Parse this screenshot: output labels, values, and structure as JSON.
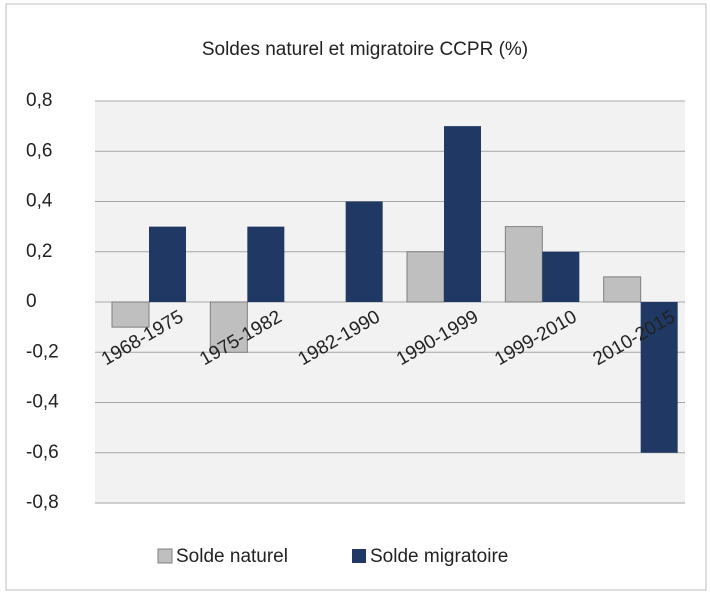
{
  "chart_data": {
    "type": "bar",
    "title": "Soldes naturel et  migratoire CCPR (%)",
    "categories": [
      "1968-1975",
      "1975-1982",
      "1982-1990",
      "1990-1999",
      "1999-2010",
      "2010-2015"
    ],
    "series": [
      {
        "name": "Solde naturel",
        "color": "#bfbfbf",
        "values": [
          -0.1,
          -0.2,
          0,
          0.2,
          0.3,
          0.1
        ]
      },
      {
        "name": "Solde migratoire",
        "color": "#1f3864",
        "values": [
          0.3,
          0.3,
          0.4,
          0.7,
          0.2,
          -0.6
        ]
      }
    ],
    "ylim": [
      -0.8,
      0.8
    ],
    "yticks": [
      {
        "value": -0.8,
        "label": "-0,8"
      },
      {
        "value": -0.6,
        "label": "-0,6"
      },
      {
        "value": -0.4,
        "label": "-0,4"
      },
      {
        "value": -0.2,
        "label": "-0,2"
      },
      0,
      {
        "value": 0.2,
        "label": "0,2"
      },
      {
        "value": 0.4,
        "label": "0,4"
      },
      {
        "value": 0.6,
        "label": "0,6"
      },
      {
        "value": 0.8,
        "label": "0,8"
      }
    ],
    "grid": true,
    "legend": "bottom"
  }
}
